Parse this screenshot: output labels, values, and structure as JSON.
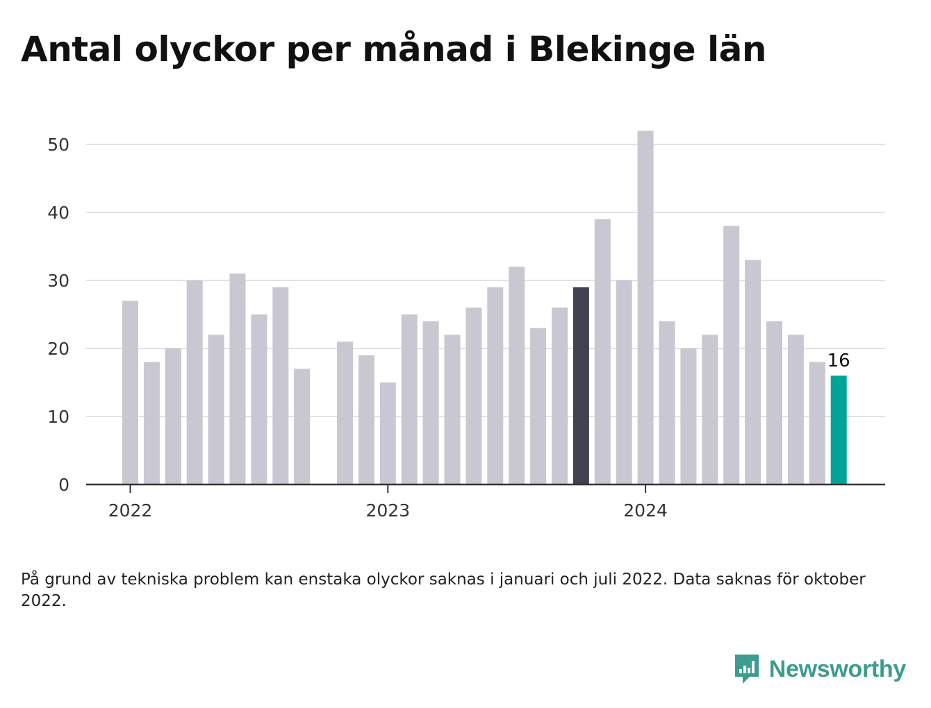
{
  "title": "Antal olyckor per månad i Blekinge län",
  "note": "På grund av tekniska problem kan enstaka olyckor saknas i januari och juli 2022. Data saknas för oktober 2022.",
  "brand": {
    "name": "Newsworthy",
    "color": "#3d9b8f",
    "icon": "bar-chart-speech-bubble-icon"
  },
  "chart_data": {
    "type": "bar",
    "title": "Antal olyckor per månad i Blekinge län",
    "xlabel": "",
    "ylabel": "",
    "ylim": [
      0,
      55
    ],
    "yticks": [
      0,
      10,
      20,
      30,
      40,
      50
    ],
    "grid": true,
    "legend": "none",
    "categories": [
      "2022-01",
      "2022-02",
      "2022-03",
      "2022-04",
      "2022-05",
      "2022-06",
      "2022-07",
      "2022-08",
      "2022-09",
      "2022-10",
      "2022-11",
      "2022-12",
      "2023-01",
      "2023-02",
      "2023-03",
      "2023-04",
      "2023-05",
      "2023-06",
      "2023-07",
      "2023-08",
      "2023-09",
      "2023-10",
      "2023-11",
      "2023-12",
      "2024-01",
      "2024-02",
      "2024-03",
      "2024-04",
      "2024-05",
      "2024-06",
      "2024-07",
      "2024-08",
      "2024-09",
      "2024-10",
      "2024-11",
      "2024-12",
      "2025-01"
    ],
    "values": [
      27,
      18,
      20,
      30,
      22,
      31,
      25,
      29,
      17,
      null,
      21,
      19,
      15,
      25,
      24,
      22,
      26,
      29,
      32,
      23,
      26,
      29,
      39,
      30,
      52,
      24,
      20,
      22,
      38,
      33,
      24,
      22,
      18,
      16,
      null,
      null,
      null
    ],
    "x_tick_labels": [
      {
        "label": "2022",
        "category": "2022-01"
      },
      {
        "label": "2023",
        "category": "2023-01"
      },
      {
        "label": "2024",
        "category": "2024-01"
      }
    ],
    "highlight": [
      {
        "category": "2023-10",
        "color": "#42414f",
        "meaning": "same month previous year"
      },
      {
        "category": "2024-10",
        "color": "#00a497",
        "label": "16",
        "meaning": "latest month"
      }
    ],
    "default_color": "#c8c7d2",
    "grid_color": "#e2e2e6",
    "axis_color": "#333333"
  }
}
